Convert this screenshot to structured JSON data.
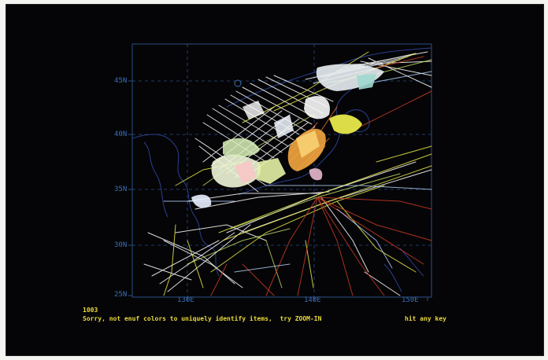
{
  "map": {
    "lat_labels": [
      "45N",
      "40N",
      "35N",
      "30N",
      "25N"
    ],
    "lon_labels": [
      "130E",
      "140E",
      "150E"
    ],
    "colors": {
      "frame": "#2a4f8a",
      "grid": "#2a4f8a",
      "coast": "#2b3f8f",
      "tracks": [
        "#ffffff",
        "#e6e84a",
        "#d9e86a",
        "#c83a24",
        "#e86a2a",
        "#b8d4ff",
        "#f3c23a",
        "#9ad3ff"
      ]
    }
  },
  "status": {
    "count": "1003",
    "message": "Sorry, not enuf colors to uniquely identify items,  try ZOOM-IN",
    "hint": "hit any key"
  }
}
